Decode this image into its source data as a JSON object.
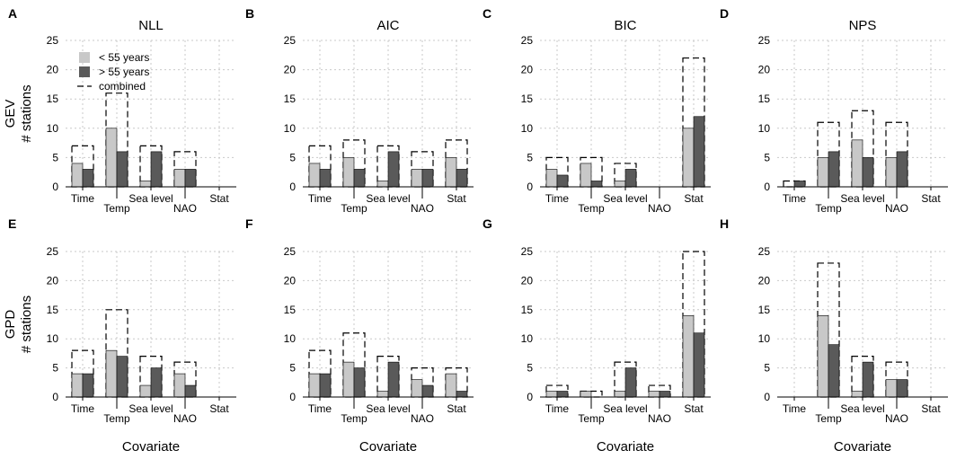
{
  "chart_data": {
    "type": "bar",
    "categories": [
      "Time",
      "Temp",
      "Sea level",
      "NAO",
      "Stat"
    ],
    "xlabel": "Covariate",
    "ylabel": "# stations",
    "ylim": [
      0,
      25
    ],
    "yticks": [
      0,
      5,
      10,
      15,
      20,
      25
    ],
    "rows": [
      "GEV",
      "GPD"
    ],
    "legend": {
      "position": "top-left",
      "entries": [
        {
          "name": "< 55 years",
          "color": "#c8c8c8",
          "style": "fill"
        },
        {
          "name": "> 55 years",
          "color": "#5a5a5a",
          "style": "fill"
        },
        {
          "name": "combined",
          "color": "#000000",
          "style": "dashed"
        }
      ]
    },
    "series_names": [
      "< 55 years",
      "> 55 years",
      "combined"
    ],
    "panels": [
      {
        "letter": "A",
        "title": "NLL",
        "row": "GEV",
        "series": [
          {
            "name": "< 55 years",
            "values": [
              4,
              10,
              1,
              3,
              0
            ]
          },
          {
            "name": "> 55 years",
            "values": [
              3,
              6,
              6,
              3,
              0
            ]
          },
          {
            "name": "combined",
            "values": [
              7,
              16,
              7,
              6,
              0
            ]
          }
        ]
      },
      {
        "letter": "B",
        "title": "AIC",
        "row": "GEV",
        "series": [
          {
            "name": "< 55 years",
            "values": [
              4,
              5,
              1,
              3,
              5
            ]
          },
          {
            "name": "> 55 years",
            "values": [
              3,
              3,
              6,
              3,
              3
            ]
          },
          {
            "name": "combined",
            "values": [
              7,
              8,
              7,
              6,
              8
            ]
          }
        ]
      },
      {
        "letter": "C",
        "title": "BIC",
        "row": "GEV",
        "series": [
          {
            "name": "< 55 years",
            "values": [
              3,
              4,
              1,
              0,
              10
            ]
          },
          {
            "name": "> 55 years",
            "values": [
              2,
              1,
              3,
              0,
              12
            ]
          },
          {
            "name": "combined",
            "values": [
              5,
              5,
              4,
              0,
              22
            ]
          }
        ]
      },
      {
        "letter": "D",
        "title": "NPS",
        "row": "GEV",
        "series": [
          {
            "name": "< 55 years",
            "values": [
              0,
              5,
              8,
              5,
              0
            ]
          },
          {
            "name": "> 55 years",
            "values": [
              1,
              6,
              5,
              6,
              0
            ]
          },
          {
            "name": "combined",
            "values": [
              1,
              11,
              13,
              11,
              0
            ]
          }
        ]
      },
      {
        "letter": "E",
        "title": "",
        "row": "GPD",
        "series": [
          {
            "name": "< 55 years",
            "values": [
              4,
              8,
              2,
              4,
              0
            ]
          },
          {
            "name": "> 55 years",
            "values": [
              4,
              7,
              5,
              2,
              0
            ]
          },
          {
            "name": "combined",
            "values": [
              8,
              15,
              7,
              6,
              0
            ]
          }
        ]
      },
      {
        "letter": "F",
        "title": "",
        "row": "GPD",
        "series": [
          {
            "name": "< 55 years",
            "values": [
              4,
              6,
              1,
              3,
              4
            ]
          },
          {
            "name": "> 55 years",
            "values": [
              4,
              5,
              6,
              2,
              1
            ]
          },
          {
            "name": "combined",
            "values": [
              8,
              11,
              7,
              5,
              5
            ]
          }
        ]
      },
      {
        "letter": "G",
        "title": "",
        "row": "GPD",
        "series": [
          {
            "name": "< 55 years",
            "values": [
              1,
              1,
              1,
              1,
              14
            ]
          },
          {
            "name": "> 55 years",
            "values": [
              1,
              0,
              5,
              1,
              11
            ]
          },
          {
            "name": "combined",
            "values": [
              2,
              1,
              6,
              2,
              25
            ]
          }
        ]
      },
      {
        "letter": "H",
        "title": "",
        "row": "GPD",
        "series": [
          {
            "name": "< 55 years",
            "values": [
              0,
              14,
              1,
              3,
              0
            ]
          },
          {
            "name": "> 55 years",
            "values": [
              0,
              9,
              6,
              3,
              0
            ]
          },
          {
            "name": "combined",
            "values": [
              0,
              23,
              7,
              6,
              0
            ]
          }
        ]
      }
    ],
    "colors": {
      "young": "#c8c8c8",
      "old": "#5a5a5a",
      "combined": "#000000",
      "grid": "#c9c9c9"
    }
  }
}
